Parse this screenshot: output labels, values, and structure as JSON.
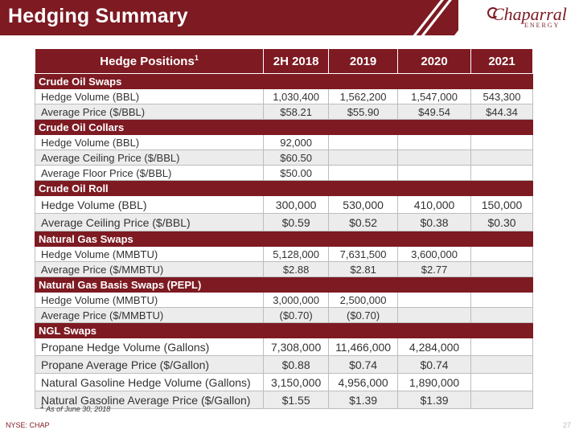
{
  "header": {
    "title": "Hedging Summary"
  },
  "logo": {
    "name": "Chaparral",
    "sub": "ENERGY"
  },
  "table": {
    "columns": [
      "Hedge Positions",
      "2H 2018",
      "2019",
      "2020",
      "2021"
    ],
    "header_footnote_marker": "1",
    "sections": [
      {
        "title": "Crude Oil Swaps",
        "rows": [
          {
            "label": "Hedge Volume (BBL)",
            "values": [
              "1,030,400",
              "1,562,200",
              "1,547,000",
              "543,300"
            ]
          },
          {
            "label": "Average Price ($/BBL)",
            "values": [
              "$58.21",
              "$55.90",
              "$49.54",
              "$44.34"
            ]
          }
        ]
      },
      {
        "title": "Crude Oil Collars",
        "rows": [
          {
            "label": "Hedge Volume (BBL)",
            "values": [
              "92,000",
              "",
              "",
              ""
            ]
          },
          {
            "label": "Average Ceiling Price ($/BBL)",
            "values": [
              "$60.50",
              "",
              "",
              ""
            ]
          },
          {
            "label": "Average Floor Price ($/BBL)",
            "values": [
              "$50.00",
              "",
              "",
              ""
            ]
          }
        ]
      },
      {
        "title": "Crude Oil Roll",
        "rows": [
          {
            "label": "Hedge Volume (BBL)",
            "values": [
              "300,000",
              "530,000",
              "410,000",
              "150,000"
            ]
          },
          {
            "label": "Average Ceiling Price ($/BBL)",
            "values": [
              "$0.59",
              "$0.52",
              "$0.38",
              "$0.30"
            ]
          }
        ]
      },
      {
        "title": "Natural Gas Swaps",
        "rows": [
          {
            "label": "Hedge Volume (MMBTU)",
            "values": [
              "5,128,000",
              "7,631,500",
              "3,600,000",
              ""
            ]
          },
          {
            "label": "Average Price ($/MMBTU)",
            "values": [
              "$2.88",
              "$2.81",
              "$2.77",
              ""
            ]
          }
        ]
      },
      {
        "title": "Natural Gas Basis Swaps (PEPL)",
        "rows": [
          {
            "label": "Hedge Volume (MMBTU)",
            "values": [
              "3,000,000",
              "2,500,000",
              "",
              ""
            ]
          },
          {
            "label": "Average Price ($/MMBTU)",
            "values": [
              "($0.70)",
              "($0.70)",
              "",
              ""
            ]
          }
        ]
      },
      {
        "title": "NGL Swaps",
        "rows": [
          {
            "label": "Propane Hedge Volume (Gallons)",
            "values": [
              "7,308,000",
              "11,466,000",
              "4,284,000",
              ""
            ]
          },
          {
            "label": "Propane Average Price  ($/Gallon)",
            "values": [
              "$0.88",
              "$0.74",
              "$0.74",
              ""
            ]
          },
          {
            "label": "Natural Gasoline Hedge Volume (Gallons)",
            "values": [
              "3,150,000",
              "4,956,000",
              "1,890,000",
              ""
            ]
          },
          {
            "label": "Natural Gasoline Average Price ($/Gallon)",
            "values": [
              "$1.55",
              "$1.39",
              "$1.39",
              ""
            ]
          }
        ]
      }
    ]
  },
  "footnote": {
    "marker": "1",
    "text": " As of June 30, 2018"
  },
  "footer": {
    "ticker": "NYSE: CHAP",
    "page": "27"
  },
  "colors": {
    "brand": "#7d1a22",
    "row_alt": "#ececec"
  }
}
